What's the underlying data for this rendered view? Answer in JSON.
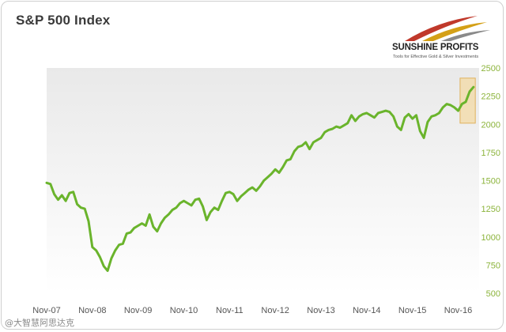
{
  "title": "S&P 500 Index",
  "logo": {
    "name": "SUNSHINE PROFITS",
    "tagline": "Tools for Effective Gold & Silver Investments"
  },
  "watermark": "@大智慧阿思达克",
  "colors": {
    "line": "#6ab42c",
    "axis_text": "#8cb43c",
    "x_text": "#555555",
    "plot_bg_top": "#e9e9e9",
    "plot_bg_bottom": "#ffffff",
    "highlight_fill": "#f3d9a4",
    "highlight_stroke": "#e0b25c"
  },
  "chart_data": {
    "type": "line",
    "title": "S&P 500 Index",
    "xlabel": "",
    "ylabel": "",
    "x_ticks": [
      "Nov-07",
      "Nov-08",
      "Nov-09",
      "Nov-10",
      "Nov-11",
      "Nov-12",
      "Nov-13",
      "Nov-14",
      "Nov-15",
      "Nov-16"
    ],
    "y_ticks": [
      500,
      750,
      1000,
      1250,
      1500,
      1750,
      2000,
      2250,
      2500
    ],
    "ylim": [
      500,
      2500
    ],
    "xlim": [
      0,
      113.5
    ],
    "y_axis_position": "right",
    "grid": false,
    "legend": "none",
    "highlight": {
      "x_range": [
        108.5,
        112.5
      ],
      "y_range": [
        2010,
        2410
      ]
    },
    "series": [
      {
        "x": [
          0,
          1,
          2,
          3,
          4,
          5,
          6,
          7,
          8,
          9,
          10,
          11,
          12,
          13,
          14,
          15,
          16,
          17,
          18,
          19,
          20,
          21,
          22,
          23,
          24,
          25,
          26,
          27,
          28,
          29,
          30,
          31,
          32,
          33,
          34,
          35,
          36,
          37,
          38,
          39,
          40,
          41,
          42,
          43,
          44,
          45,
          46,
          47,
          48,
          49,
          50,
          51,
          52,
          53,
          54,
          55,
          56,
          57,
          58,
          59,
          60,
          61,
          62,
          63,
          64,
          65,
          66,
          67,
          68,
          69,
          70,
          71,
          72,
          73,
          74,
          75,
          76,
          77,
          78,
          79,
          80,
          81,
          82,
          83,
          84,
          85,
          86,
          87,
          88,
          89,
          90,
          91,
          92,
          93,
          94,
          95,
          96,
          97,
          98,
          99,
          100,
          101,
          102,
          103,
          104,
          105,
          106,
          107,
          108,
          109,
          110,
          111,
          112
        ],
        "values": [
          1480,
          1470,
          1380,
          1330,
          1370,
          1320,
          1390,
          1400,
          1290,
          1260,
          1250,
          1140,
          910,
          880,
          820,
          740,
          700,
          810,
          880,
          930,
          940,
          1030,
          1040,
          1080,
          1100,
          1120,
          1100,
          1200,
          1090,
          1050,
          1120,
          1170,
          1200,
          1240,
          1260,
          1300,
          1320,
          1300,
          1280,
          1330,
          1340,
          1270,
          1150,
          1220,
          1260,
          1240,
          1320,
          1390,
          1400,
          1380,
          1320,
          1360,
          1390,
          1420,
          1440,
          1410,
          1450,
          1500,
          1530,
          1560,
          1600,
          1570,
          1620,
          1680,
          1690,
          1760,
          1800,
          1810,
          1840,
          1780,
          1840,
          1860,
          1880,
          1930,
          1950,
          1960,
          1980,
          1970,
          1990,
          2010,
          2080,
          2030,
          2070,
          2090,
          2100,
          2080,
          2060,
          2100,
          2110,
          2120,
          2110,
          2070,
          1980,
          1950,
          2060,
          2090,
          2050,
          2080,
          1940,
          1880,
          2020,
          2070,
          2080,
          2100,
          2150,
          2180,
          2170,
          2150,
          2120,
          2180,
          2200,
          2290,
          2330
        ]
      }
    ]
  }
}
